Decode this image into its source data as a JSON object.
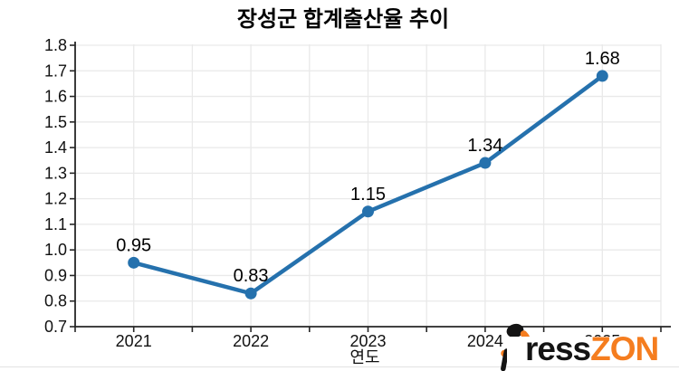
{
  "page": {
    "background": "#ffffff",
    "bottom_strip_color": "#efefef"
  },
  "chart_data": {
    "type": "line",
    "title": "장성군 합계출산율 추이",
    "xlabel": "연도",
    "ylabel": "",
    "x": [
      2021,
      2022,
      2023,
      2024,
      2025
    ],
    "x_tick_labels": [
      "2021",
      "2022",
      "2023",
      "2024",
      "2025"
    ],
    "values": [
      0.95,
      0.83,
      1.15,
      1.34,
      1.68
    ],
    "data_labels": [
      "0.95",
      "0.83",
      "1.15",
      "1.34",
      "1.68"
    ],
    "xlim": [
      2020.5,
      2025.5
    ],
    "ylim": [
      0.7,
      1.8
    ],
    "y_tick_labels": [
      "0.7",
      "0.8",
      "0.9",
      "1.0",
      "1.1",
      "1.2",
      "1.3",
      "1.4",
      "1.5",
      "1.6",
      "1.7",
      "1.8"
    ],
    "x_tick_step": 0.5,
    "grid": true,
    "legend_position": "none",
    "line_color": "#2571ad",
    "marker_color": "#2571ad",
    "marker": "circle",
    "grid_color": "#e9e9e9",
    "axis_color": "#262626",
    "text_color": "#111111",
    "label_color": "#000000"
  },
  "watermark": {
    "brand": "PressZON",
    "part_black": "ress",
    "part_orange": "ZON",
    "orange": "#f57d1f",
    "black": "#141414"
  }
}
